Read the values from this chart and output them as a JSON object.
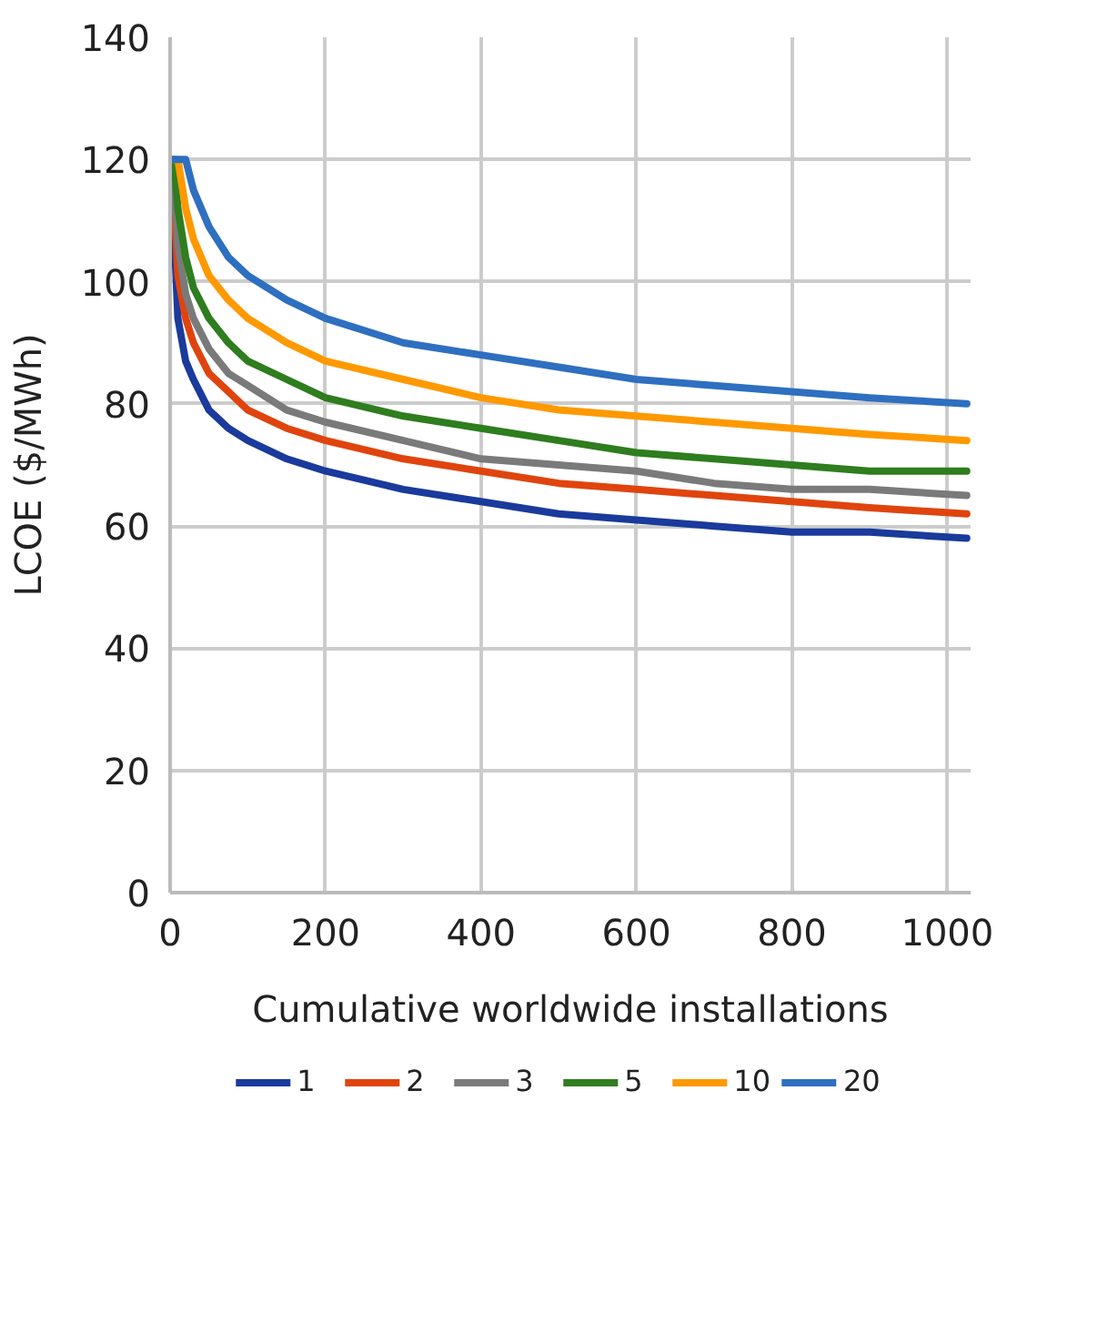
{
  "chart_data": {
    "type": "line",
    "xlabel": "Cumulative worldwide installations",
    "ylabel": "LCOE ($/MWh)",
    "xlim": [
      0,
      1030
    ],
    "ylim": [
      0,
      140
    ],
    "xticks": [
      0,
      200,
      400,
      600,
      800,
      1000
    ],
    "yticks": [
      0,
      20,
      40,
      60,
      80,
      100,
      120,
      140
    ],
    "grid": true,
    "legend": "bottom",
    "marker": "none",
    "line_style": "solid",
    "series": [
      {
        "name": "1",
        "color": "#1a3a9c",
        "x": [
          0,
          1,
          10,
          20,
          30,
          50,
          75,
          100,
          150,
          200,
          300,
          400,
          500,
          600,
          700,
          800,
          900,
          1025
        ],
        "values": [
          120,
          120,
          94,
          87,
          84,
          79,
          76,
          74,
          71,
          69,
          66,
          64,
          62,
          61,
          60,
          59,
          59,
          58
        ]
      },
      {
        "name": "2",
        "color": "#e0440e",
        "x": [
          0,
          2,
          10,
          20,
          30,
          50,
          75,
          100,
          150,
          200,
          300,
          400,
          500,
          600,
          700,
          800,
          900,
          1025
        ],
        "values": [
          120,
          120,
          101,
          94,
          90,
          85,
          82,
          79,
          76,
          74,
          71,
          69,
          67,
          66,
          65,
          64,
          63,
          62
        ]
      },
      {
        "name": "3",
        "color": "#7a7a7a",
        "x": [
          0,
          3,
          10,
          20,
          30,
          50,
          75,
          100,
          150,
          200,
          300,
          400,
          500,
          600,
          700,
          800,
          900,
          1025
        ],
        "values": [
          120,
          120,
          106,
          98,
          94,
          89,
          85,
          83,
          79,
          77,
          74,
          71,
          70,
          69,
          67,
          66,
          66,
          65
        ]
      },
      {
        "name": "5",
        "color": "#2e7d1e",
        "x": [
          0,
          5,
          10,
          20,
          30,
          50,
          75,
          100,
          150,
          200,
          300,
          400,
          500,
          600,
          700,
          800,
          900,
          1025
        ],
        "values": [
          120,
          120,
          112,
          104,
          99,
          94,
          90,
          87,
          84,
          81,
          78,
          76,
          74,
          72,
          71,
          70,
          69,
          69
        ]
      },
      {
        "name": "10",
        "color": "#ff9900",
        "x": [
          0,
          10,
          20,
          30,
          50,
          75,
          100,
          150,
          200,
          300,
          400,
          500,
          600,
          700,
          800,
          900,
          1025
        ],
        "values": [
          120,
          120,
          112,
          107,
          101,
          97,
          94,
          90,
          87,
          84,
          81,
          79,
          78,
          77,
          76,
          75,
          74
        ]
      },
      {
        "name": "20",
        "color": "#2e6fc0",
        "x": [
          0,
          20,
          30,
          50,
          75,
          100,
          150,
          200,
          300,
          400,
          500,
          600,
          700,
          800,
          900,
          1025
        ],
        "values": [
          120,
          120,
          115,
          109,
          104,
          101,
          97,
          94,
          90,
          88,
          86,
          84,
          83,
          82,
          81,
          80
        ]
      }
    ]
  }
}
